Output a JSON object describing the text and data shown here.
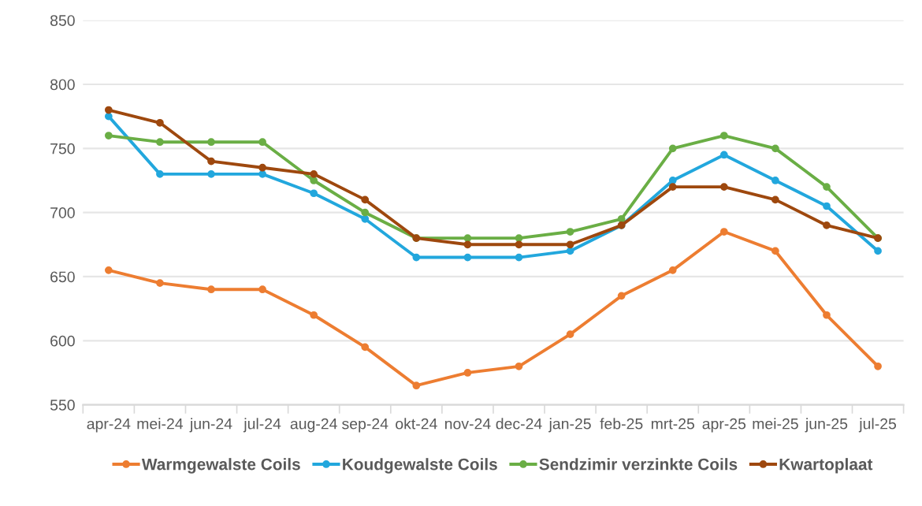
{
  "chart_data": {
    "type": "line",
    "categories": [
      "apr-24",
      "mei-24",
      "jun-24",
      "jul-24",
      "aug-24",
      "sep-24",
      "okt-24",
      "nov-24",
      "dec-24",
      "jan-25",
      "feb-25",
      "mrt-25",
      "apr-25",
      "mei-25",
      "jun-25",
      "jul-25"
    ],
    "series": [
      {
        "name": "Warmgewalste Coils",
        "color": "#ed7d31",
        "values": [
          655,
          645,
          640,
          640,
          620,
          595,
          565,
          575,
          580,
          605,
          635,
          655,
          685,
          670,
          620,
          580
        ]
      },
      {
        "name": "Koudgewalste Coils",
        "color": "#22a7dd",
        "values": [
          775,
          730,
          730,
          730,
          715,
          695,
          665,
          665,
          665,
          670,
          690,
          725,
          745,
          725,
          705,
          670
        ]
      },
      {
        "name": "Sendzimir verzinkte Coils",
        "color": "#6aae45",
        "values": [
          760,
          755,
          755,
          755,
          725,
          700,
          680,
          680,
          680,
          685,
          695,
          750,
          760,
          750,
          720,
          680
        ]
      },
      {
        "name": "Kwartoplaat",
        "color": "#9e480e",
        "values": [
          780,
          770,
          740,
          735,
          730,
          710,
          680,
          675,
          675,
          675,
          690,
          720,
          720,
          710,
          690,
          680
        ]
      }
    ],
    "ylim": [
      550,
      850
    ],
    "yticks": [
      550,
      600,
      650,
      700,
      750,
      800,
      850
    ],
    "grid": "y",
    "legend": "bottom",
    "marker": "circle",
    "line_style": "solid"
  }
}
